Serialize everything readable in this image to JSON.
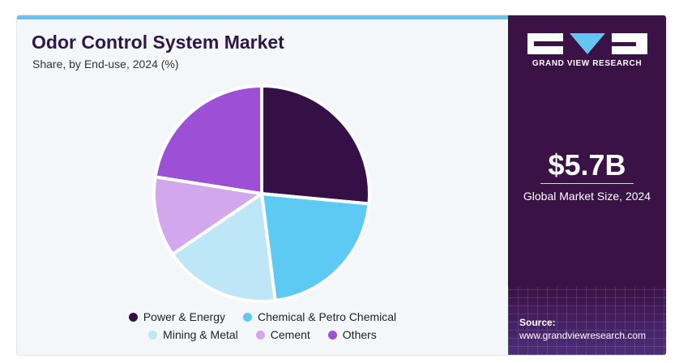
{
  "header": {
    "title": "Odor Control System Market",
    "subtitle": "Share, by End-use, 2024 (%)"
  },
  "sidebar": {
    "brand": "GRAND VIEW RESEARCH",
    "market_value": "$5.7B",
    "market_caption": "Global Market Size, 2024",
    "source_label": "Source:",
    "source_url": "www.grandviewresearch.com"
  },
  "colors": {
    "accent_bar": "#62c6f2",
    "sidebar_bg": "#3a1245",
    "title": "#2f1548"
  },
  "chart_data": {
    "type": "pie",
    "title": "Odor Control System Market",
    "subtitle": "Share, by End-use, 2024 (%)",
    "categories": [
      "Power & Energy",
      "Chemical & Petro Chemical",
      "Mining & Metal",
      "Cement",
      "Others"
    ],
    "values": [
      26.5,
      21.5,
      17.5,
      12,
      22.5
    ],
    "colors": [
      "#351046",
      "#5dcaf4",
      "#bde6f7",
      "#d3a7eb",
      "#9d4fd6"
    ],
    "legend_position": "bottom",
    "legend_rows": [
      [
        "Power & Energy",
        "Chemical & Petro Chemical"
      ],
      [
        "Mining & Metal",
        "Cement",
        "Others"
      ]
    ]
  }
}
